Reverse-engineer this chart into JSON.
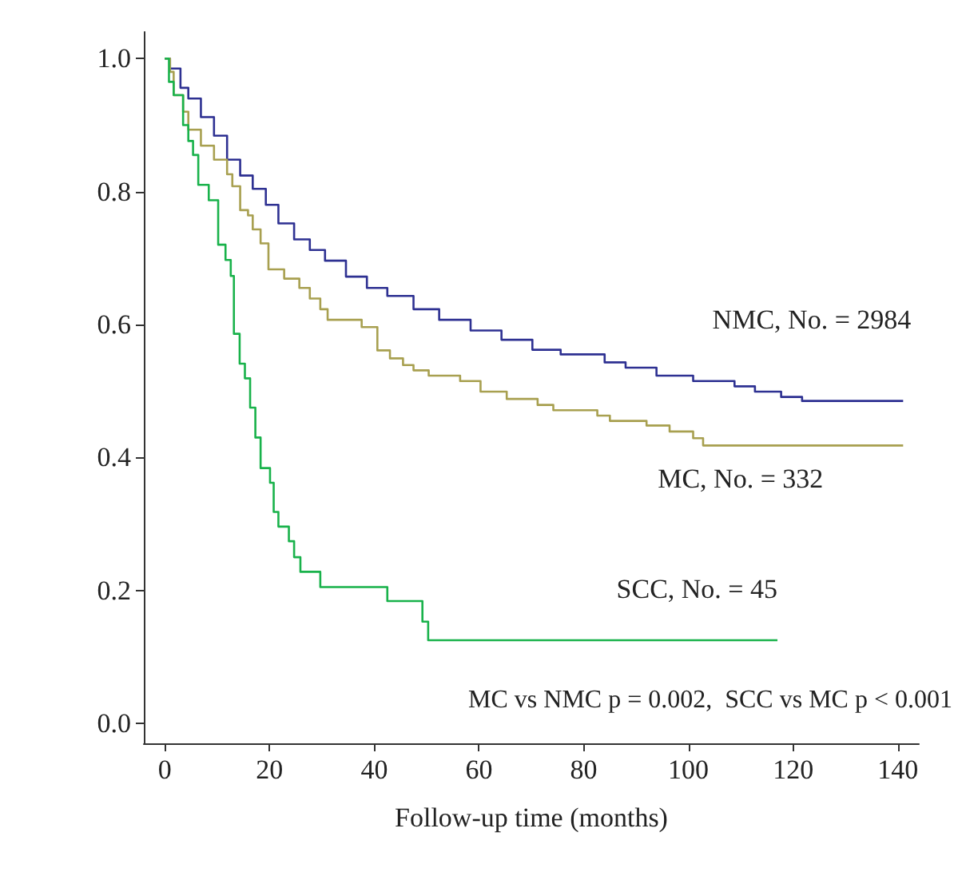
{
  "chart_data": {
    "type": "step",
    "xlabel": "Follow-up time (months)",
    "xlim": [
      -4,
      144
    ],
    "xticks": [
      0,
      20,
      40,
      60,
      80,
      100,
      120,
      140
    ],
    "ylim": [
      -0.03,
      1.04
    ],
    "yticks": [
      {
        "value": 0,
        "label": "0.0"
      },
      {
        "value": 0.2,
        "label": "0.2"
      },
      {
        "value": 0.4,
        "label": "0.4"
      },
      {
        "value": 0.6,
        "label": "0.6"
      },
      {
        "value": 0.8,
        "label": "0.8"
      },
      {
        "value": 1,
        "label": "1.0"
      }
    ],
    "grid": false,
    "legend": false,
    "marker": "none",
    "line_style": "solid",
    "series": [
      {
        "name": "NMC, No. = 2984",
        "color": "#2e3192",
        "x": [
          0,
          1,
          3,
          4.5,
          6.9,
          9.4,
          11.9,
          14.4,
          16.8,
          19.3,
          21.7,
          24.7,
          27.7,
          30.6,
          34.6,
          38.6,
          42.5,
          47.5,
          52.4,
          58.4,
          64.3,
          70.2,
          75.6,
          84,
          88,
          93.9,
          100.9,
          108.8,
          112.7,
          117.7,
          121.7,
          141
        ],
        "values": [
          1,
          0.985,
          0.956,
          0.94,
          0.912,
          0.884,
          0.848,
          0.824,
          0.804,
          0.78,
          0.752,
          0.728,
          0.712,
          0.696,
          0.672,
          0.655,
          0.643,
          0.623,
          0.607,
          0.591,
          0.577,
          0.562,
          0.555,
          0.543,
          0.535,
          0.523,
          0.515,
          0.507,
          0.499,
          0.491,
          0.485,
          0.485
        ]
      },
      {
        "name": "MC, No. = 332",
        "color": "#a8a050",
        "x": [
          0,
          1,
          1.7,
          3.5,
          4.5,
          6.9,
          9.4,
          11.9,
          12.9,
          14.4,
          15.9,
          16.8,
          18.3,
          19.8,
          22.8,
          25.7,
          27.7,
          29.7,
          31.1,
          37.6,
          40.6,
          43,
          45.5,
          47.5,
          50.4,
          56.4,
          60.3,
          65.3,
          71.2,
          74.2,
          82.6,
          85,
          92,
          96.4,
          100.9,
          102.8,
          141
        ],
        "values": [
          1,
          0.98,
          0.945,
          0.92,
          0.893,
          0.869,
          0.848,
          0.826,
          0.808,
          0.772,
          0.764,
          0.743,
          0.722,
          0.683,
          0.669,
          0.655,
          0.639,
          0.623,
          0.607,
          0.596,
          0.561,
          0.549,
          0.539,
          0.531,
          0.523,
          0.515,
          0.499,
          0.488,
          0.479,
          0.471,
          0.463,
          0.455,
          0.448,
          0.439,
          0.429,
          0.418,
          0.418
        ]
      },
      {
        "name": "SCC, No. = 45",
        "color": "#19b24b",
        "x": [
          0,
          0.8,
          1.7,
          3.5,
          4.5,
          5.4,
          6.4,
          8.4,
          10.2,
          11.6,
          12.6,
          13.2,
          14.3,
          15.3,
          16.3,
          17.3,
          18.3,
          20.1,
          20.8,
          21.7,
          23.7,
          24.7,
          25.9,
          29.7,
          42.5,
          49.2,
          50.3,
          117
        ],
        "values": [
          1,
          0.965,
          0.945,
          0.9,
          0.876,
          0.855,
          0.81,
          0.787,
          0.72,
          0.697,
          0.673,
          0.586,
          0.541,
          0.519,
          0.475,
          0.43,
          0.384,
          0.362,
          0.318,
          0.296,
          0.274,
          0.25,
          0.228,
          0.205,
          0.184,
          0.153,
          0.125,
          0.125
        ]
      }
    ],
    "annotations": [
      "MC vs NMC p = 0.002,  SCC vs MC p < 0.001"
    ]
  }
}
